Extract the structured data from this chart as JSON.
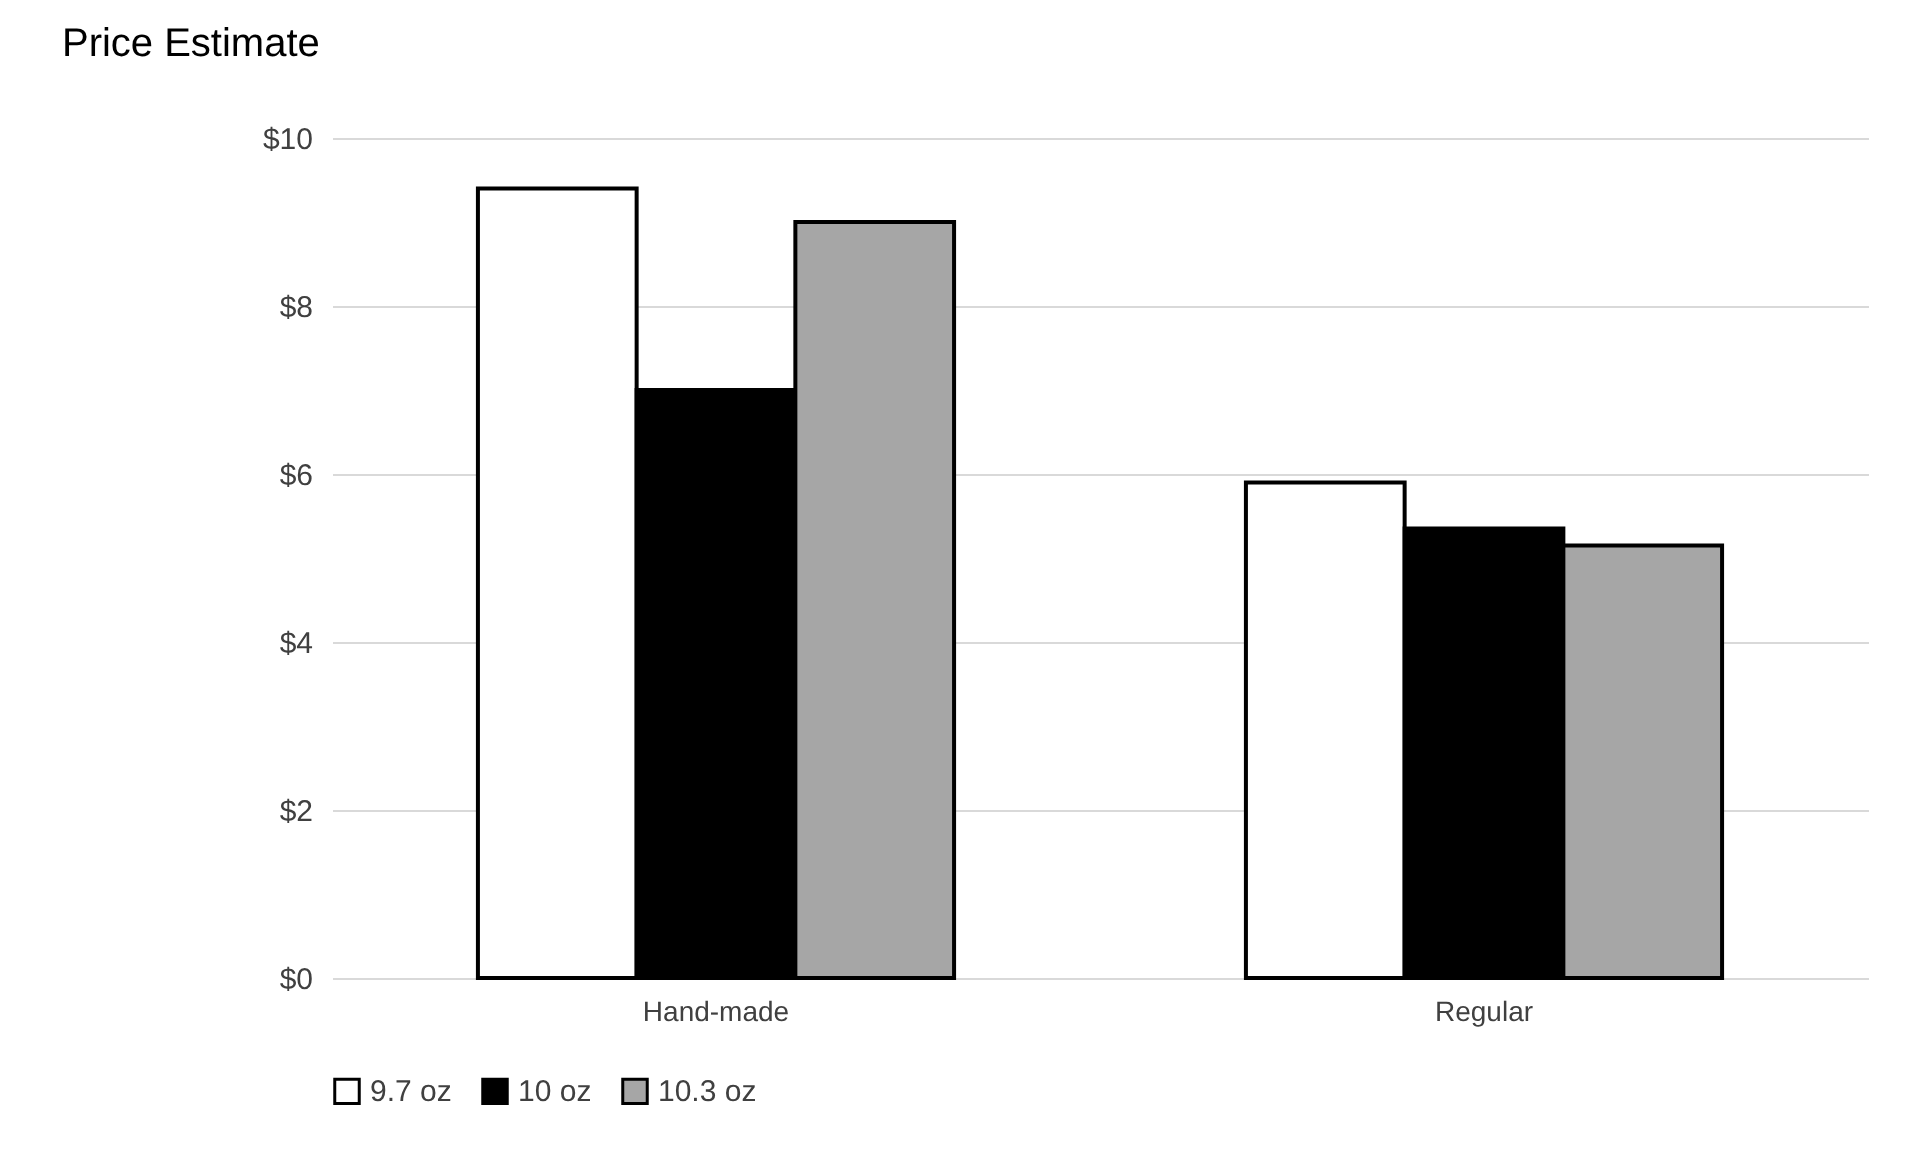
{
  "chart_data": {
    "type": "bar",
    "title": "Price Estimate",
    "categories": [
      "Hand-made",
      "Regular"
    ],
    "series": [
      {
        "name": "9.7 oz",
        "color": "#ffffff",
        "values": [
          9.4,
          5.9
        ]
      },
      {
        "name": "10 oz",
        "color": "#000000",
        "values": [
          7.0,
          5.35
        ]
      },
      {
        "name": "10.3 oz",
        "color": "#a6a6a6",
        "values": [
          9.0,
          5.15
        ]
      }
    ],
    "ylim": [
      0,
      10
    ],
    "yticks": [
      {
        "value": 0,
        "label": "$0"
      },
      {
        "value": 2,
        "label": "$2"
      },
      {
        "value": 4,
        "label": "$4"
      },
      {
        "value": 6,
        "label": "$6"
      },
      {
        "value": 8,
        "label": "$8"
      },
      {
        "value": 10,
        "label": "$10"
      }
    ],
    "grid": "y",
    "legend": "bottom"
  }
}
